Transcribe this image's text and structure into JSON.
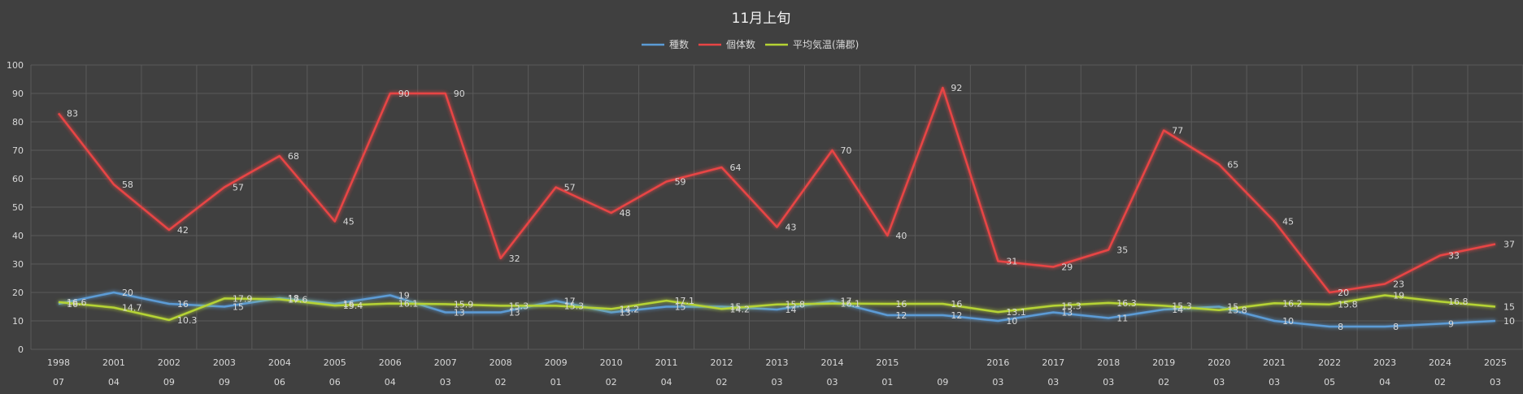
{
  "chart_data": {
    "type": "line",
    "title": "11月上旬",
    "legend_position": "top",
    "grid": true,
    "ylim": [
      0,
      100
    ],
    "yticks": [
      0,
      10,
      20,
      30,
      40,
      50,
      60,
      70,
      80,
      90,
      100
    ],
    "categories": [
      {
        "year": "1998",
        "sub": "07"
      },
      {
        "year": "2001",
        "sub": "04"
      },
      {
        "year": "2002",
        "sub": "09"
      },
      {
        "year": "2003",
        "sub": "09"
      },
      {
        "year": "2004",
        "sub": "06"
      },
      {
        "year": "2005",
        "sub": "06"
      },
      {
        "year": "2006",
        "sub": "04"
      },
      {
        "year": "2007",
        "sub": "03"
      },
      {
        "year": "2008",
        "sub": "02"
      },
      {
        "year": "2009",
        "sub": "01"
      },
      {
        "year": "2010",
        "sub": "02"
      },
      {
        "year": "2011",
        "sub": "04"
      },
      {
        "year": "2012",
        "sub": "02"
      },
      {
        "year": "2013",
        "sub": "03"
      },
      {
        "year": "2014",
        "sub": "03"
      },
      {
        "year": "2015",
        "sub": "01"
      },
      {
        "year": "",
        "sub": "09"
      },
      {
        "year": "2016",
        "sub": "03"
      },
      {
        "year": "2017",
        "sub": "03"
      },
      {
        "year": "2018",
        "sub": "03"
      },
      {
        "year": "2019",
        "sub": "02"
      },
      {
        "year": "2020",
        "sub": "03"
      },
      {
        "year": "2021",
        "sub": "03"
      },
      {
        "year": "2022",
        "sub": "05"
      },
      {
        "year": "2023",
        "sub": "04"
      },
      {
        "year": "2024",
        "sub": "02"
      },
      {
        "year": "2025",
        "sub": "03"
      }
    ],
    "series": [
      {
        "name": "種数",
        "color": "#5b9bd5",
        "values": [
          16,
          20,
          16,
          15,
          18,
          16,
          19,
          13,
          13,
          17,
          13,
          15,
          15,
          14,
          17,
          12,
          12,
          10,
          13,
          11,
          14,
          15,
          10,
          8,
          8,
          9,
          10
        ],
        "labels": [
          "16",
          "20",
          "16",
          "15",
          "18",
          "16",
          "19",
          "13",
          "13",
          "17",
          "13",
          "15",
          "15",
          "14",
          "17",
          "12",
          "12",
          "10",
          "13",
          "11",
          "14",
          "15",
          "10",
          "8",
          "8",
          "9",
          "10"
        ]
      },
      {
        "name": "個体数",
        "color": "#e84545",
        "values": [
          83,
          58,
          42,
          57,
          68,
          45,
          90,
          90,
          32,
          57,
          48,
          59,
          64,
          43,
          70,
          40,
          92,
          31,
          29,
          35,
          77,
          65,
          45,
          20,
          23,
          33,
          37
        ],
        "labels": [
          "83",
          "58",
          "42",
          "57",
          "68",
          "45",
          "90",
          "90",
          "32",
          "57",
          "48",
          "59",
          "64",
          "43",
          "70",
          "40",
          "92",
          "31",
          "29",
          "35",
          "77",
          "65",
          "45",
          "20",
          "23",
          "33",
          "37"
        ]
      },
      {
        "name": "平均気温(蒲郡)",
        "color": "#b5d334",
        "values": [
          16.6,
          14.7,
          10.3,
          17.9,
          17.6,
          15.4,
          16.1,
          15.9,
          15.3,
          15.3,
          14.2,
          17.1,
          14.2,
          15.8,
          16.1,
          16,
          16,
          13.1,
          15.3,
          16.3,
          15.3,
          13.8,
          16.2,
          15.8,
          19,
          16.8,
          15
        ],
        "labels": [
          "16.6",
          "14.7",
          "10.3",
          "17.9",
          "17.6",
          "15.4",
          "16.1",
          "15.9",
          "15.3",
          "15.3",
          "14.2",
          "17.1",
          "14.2",
          "15.8",
          "16.1",
          "16",
          "16",
          "13.1",
          "15.3",
          "16.3",
          "15.3",
          "13.8",
          "16.2",
          "15.8",
          "19",
          "16.8",
          "15"
        ]
      }
    ]
  }
}
